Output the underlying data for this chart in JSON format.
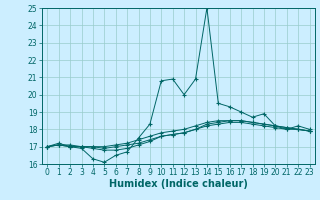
{
  "xlabel": "Humidex (Indice chaleur)",
  "background_color": "#cceeff",
  "grid_color": "#99cccc",
  "line_color": "#006666",
  "x_values": [
    0,
    1,
    2,
    3,
    4,
    5,
    6,
    7,
    8,
    9,
    10,
    11,
    12,
    13,
    14,
    15,
    16,
    17,
    18,
    19,
    20,
    21,
    22,
    23
  ],
  "series": [
    [
      17.0,
      17.1,
      17.0,
      16.9,
      16.3,
      16.1,
      16.5,
      16.7,
      17.5,
      18.3,
      20.8,
      20.9,
      20.0,
      20.9,
      25.0,
      19.5,
      19.3,
      19.0,
      18.7,
      18.9,
      18.2,
      18.0,
      18.2,
      18.0
    ],
    [
      17.0,
      17.1,
      17.0,
      17.0,
      16.9,
      16.8,
      16.8,
      16.9,
      17.1,
      17.3,
      17.6,
      17.7,
      17.8,
      18.0,
      18.3,
      18.4,
      18.5,
      18.5,
      18.4,
      18.3,
      18.2,
      18.1,
      18.0,
      17.9
    ],
    [
      17.0,
      17.1,
      17.1,
      17.0,
      17.0,
      16.9,
      17.0,
      17.1,
      17.2,
      17.4,
      17.6,
      17.7,
      17.8,
      18.0,
      18.2,
      18.3,
      18.4,
      18.4,
      18.3,
      18.2,
      18.1,
      18.0,
      18.0,
      17.9
    ],
    [
      17.0,
      17.2,
      17.0,
      17.0,
      17.0,
      17.0,
      17.1,
      17.2,
      17.4,
      17.6,
      17.8,
      17.9,
      18.0,
      18.2,
      18.4,
      18.5,
      18.5,
      18.5,
      18.4,
      18.3,
      18.2,
      18.1,
      18.0,
      17.9
    ]
  ],
  "ylim": [
    16,
    25
  ],
  "xlim": [
    -0.5,
    23.5
  ],
  "yticks": [
    16,
    17,
    18,
    19,
    20,
    21,
    22,
    23,
    24,
    25
  ],
  "xticks": [
    0,
    1,
    2,
    3,
    4,
    5,
    6,
    7,
    8,
    9,
    10,
    11,
    12,
    13,
    14,
    15,
    16,
    17,
    18,
    19,
    20,
    21,
    22,
    23
  ],
  "tick_fontsize": 5.5,
  "xlabel_fontsize": 7.0
}
